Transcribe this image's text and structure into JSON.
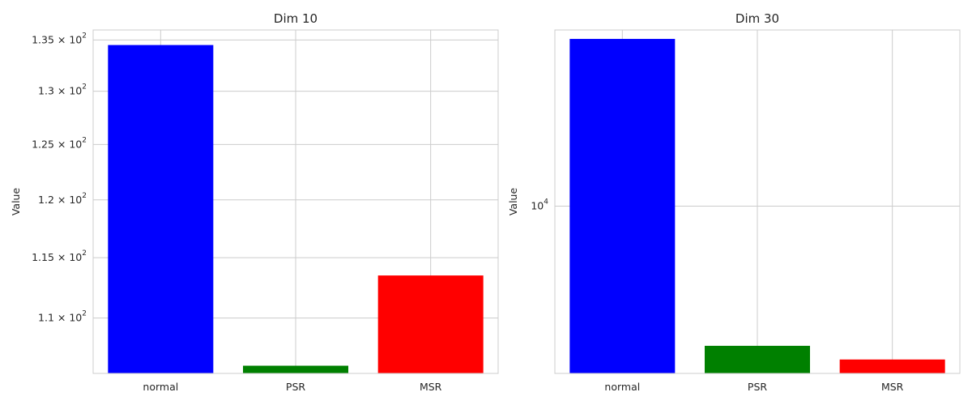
{
  "chart_data": [
    {
      "type": "bar",
      "title": "Dim 10",
      "ylabel": "Value",
      "xlabel": "",
      "yscale": "log",
      "grid": true,
      "categories": [
        "normal",
        "PSR",
        "MSR"
      ],
      "values": [
        134.5,
        106.2,
        113.5
      ],
      "colors": [
        "#0000ff",
        "#008000",
        "#ff0000"
      ],
      "ylim": [
        105.6,
        136
      ],
      "yticks": [
        {
          "value": 110,
          "mantissa": "1.1",
          "base": "10",
          "exp": "2"
        },
        {
          "value": 115,
          "mantissa": "1.15",
          "base": "10",
          "exp": "2"
        },
        {
          "value": 120,
          "mantissa": "1.2",
          "base": "10",
          "exp": "2"
        },
        {
          "value": 125,
          "mantissa": "1.25",
          "base": "10",
          "exp": "2"
        },
        {
          "value": 130,
          "mantissa": "1.3",
          "base": "10",
          "exp": "2"
        },
        {
          "value": 135,
          "mantissa": "1.35",
          "base": "10",
          "exp": "2"
        }
      ]
    },
    {
      "type": "bar",
      "title": "Dim 30",
      "ylabel": "Value",
      "xlabel": "",
      "yscale": "log",
      "grid": true,
      "categories": [
        "normal",
        "PSR",
        "MSR"
      ],
      "values": [
        12500,
        8300,
        8150
      ],
      "colors": [
        "#0000ff",
        "#008000",
        "#ff0000"
      ],
      "ylim": [
        8000,
        12650
      ],
      "yticks": [
        {
          "value": 10000,
          "mantissa": "",
          "base": "10",
          "exp": "4"
        }
      ]
    }
  ]
}
